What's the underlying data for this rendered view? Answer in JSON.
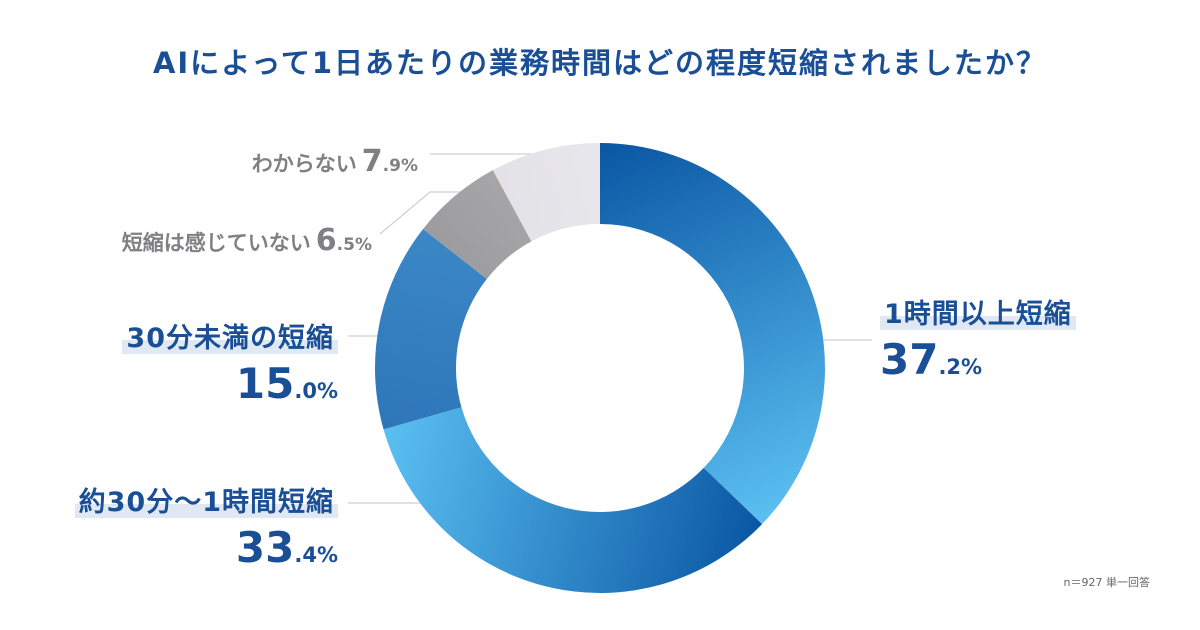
{
  "chart_data": {
    "type": "pie",
    "title": "AIによって1日あたりの業務時間はどの程度短縮されましたか？",
    "slices": [
      {
        "label": "1時間以上短縮",
        "value": 37.2,
        "int": "37",
        "dec": ".2%",
        "color_from": "#0a56a3",
        "color_to": "#5bc0f2"
      },
      {
        "label": "約30分〜1時間短縮",
        "value": 33.4,
        "int": "33",
        "dec": ".4%",
        "color_from": "#0a56a3",
        "color_to": "#5bc0f2"
      },
      {
        "label": "30分未満の短縮",
        "value": 15.0,
        "int": "15",
        "dec": ".0%",
        "color_from": "#2e76b9",
        "color_to": "#3b87c6"
      },
      {
        "label": "短縮は感じていない",
        "value": 6.5,
        "int": "6",
        "dec": ".5%",
        "color_from": "#9c9c9f",
        "color_to": "#a6a6a9"
      },
      {
        "label": "わからない",
        "value": 7.9,
        "int": "7",
        "dec": ".9%",
        "color_from": "#e3e2e7",
        "color_to": "#e8e7ec"
      }
    ],
    "note": "n＝927 単一回答"
  }
}
